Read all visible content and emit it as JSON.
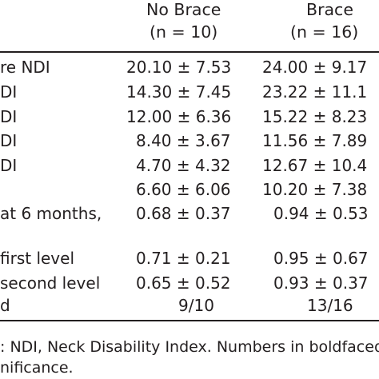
{
  "table": {
    "headers": [
      {
        "title": "No Brace",
        "n": "(n = 10)"
      },
      {
        "title": "Brace",
        "n": "(n = 16)"
      }
    ],
    "rows": [
      {
        "label": "re NDI",
        "no_brace": "20.10 ± 7.53",
        "brace": "24.00 ± 9.17"
      },
      {
        "label": "DI",
        "no_brace": "14.30 ± 7.45",
        "brace": "23.22 ± 11.1"
      },
      {
        "label": "DI",
        "no_brace": "12.00 ± 6.36",
        "brace": "15.22 ± 8.23"
      },
      {
        "label": "DI",
        "no_brace": "8.40 ± 3.67",
        "brace": "11.56 ± 7.89"
      },
      {
        "label": "DI",
        "no_brace": "4.70 ± 4.32",
        "brace": "12.67 ± 10.4"
      },
      {
        "label": "",
        "no_brace": "6.60 ± 6.06",
        "brace": "10.20 ± 7.38"
      },
      {
        "label": "at 6 months,",
        "no_brace": "0.68 ± 0.37",
        "brace": "0.94 ± 0.53"
      },
      {
        "label": "first level",
        "no_brace": "0.71 ± 0.21",
        "brace": "0.95 ± 0.67"
      },
      {
        "label": "second level",
        "no_brace": "0.65 ± 0.52",
        "brace": "0.93 ± 0.37"
      },
      {
        "label": "d",
        "no_brace": "9/10",
        "brace": "13/16"
      }
    ]
  },
  "footnote": {
    "line1": ": NDI, Neck Disability Index. Numbers in boldfaced",
    "line2": "nificance."
  }
}
